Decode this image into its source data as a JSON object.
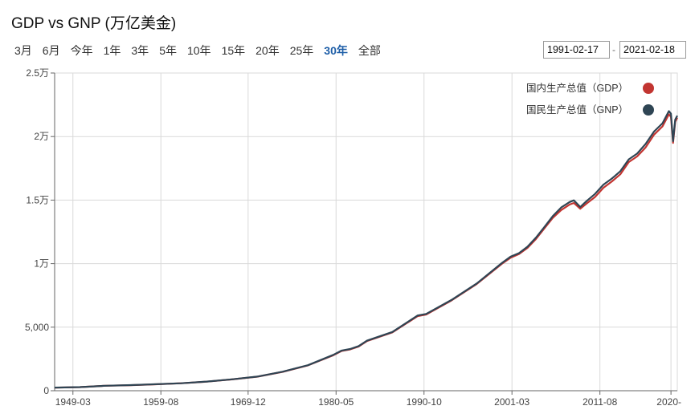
{
  "header": {
    "title": "GDP vs GNP (万亿美金)"
  },
  "ranges": [
    {
      "label": "3月",
      "active": false
    },
    {
      "label": "6月",
      "active": false
    },
    {
      "label": "今年",
      "active": false
    },
    {
      "label": "1年",
      "active": false
    },
    {
      "label": "3年",
      "active": false
    },
    {
      "label": "5年",
      "active": false
    },
    {
      "label": "10年",
      "active": false
    },
    {
      "label": "15年",
      "active": false
    },
    {
      "label": "20年",
      "active": false
    },
    {
      "label": "25年",
      "active": false
    },
    {
      "label": "30年",
      "active": true
    },
    {
      "label": "全部",
      "active": false
    }
  ],
  "date_range": {
    "start": "1991-02-17",
    "separator": "-",
    "end": "2021-02-18"
  },
  "colors": {
    "gdp": "#c23531",
    "gnp": "#2f4554",
    "grid": "#d9d9d9"
  },
  "chart_data": {
    "type": "line",
    "title": "GDP vs GNP (万亿美金)",
    "xlabel": "",
    "ylabel": "",
    "ylim": [
      0,
      25000
    ],
    "yticks": [
      0,
      5000,
      10000,
      15000,
      20000,
      25000
    ],
    "ytick_labels": [
      "0",
      "5,000",
      "1万",
      "1.5万",
      "2万",
      "2.5万"
    ],
    "xticks": [
      "1949-03",
      "1959-08",
      "1969-12",
      "1980-05",
      "1990-10",
      "2001-03",
      "2011-08",
      "2020-"
    ],
    "xlim": [
      "1947-01",
      "2020-10"
    ],
    "grid": true,
    "legend_position": "top-right",
    "series": [
      {
        "name": "国内生产总值（GDP）",
        "points": [
          [
            "1947-01",
            243
          ],
          [
            "1950-01",
            281
          ],
          [
            "1953-01",
            390
          ],
          [
            "1956-01",
            437
          ],
          [
            "1959-01",
            507
          ],
          [
            "1962-01",
            584
          ],
          [
            "1965-01",
            712
          ],
          [
            "1968-01",
            891
          ],
          [
            "1971-01",
            1107
          ],
          [
            "1974-01",
            1484
          ],
          [
            "1977-01",
            1992
          ],
          [
            "1980-01",
            2790
          ],
          [
            "1981-01",
            3130
          ],
          [
            "1982-01",
            3250
          ],
          [
            "1983-01",
            3480
          ],
          [
            "1984-01",
            3910
          ],
          [
            "1987-01",
            4590
          ],
          [
            "1990-01",
            5870
          ],
          [
            "1991-01",
            5990
          ],
          [
            "1994-01",
            7100
          ],
          [
            "1997-01",
            8400
          ],
          [
            "2000-01",
            10000
          ],
          [
            "2001-01",
            10470
          ],
          [
            "2002-01",
            10760
          ],
          [
            "2003-01",
            11240
          ],
          [
            "2004-01",
            11930
          ],
          [
            "2005-01",
            12770
          ],
          [
            "2006-01",
            13600
          ],
          [
            "2007-01",
            14220
          ],
          [
            "2008-01",
            14650
          ],
          [
            "2008-07",
            14770
          ],
          [
            "2009-04",
            14320
          ],
          [
            "2010-01",
            14720
          ],
          [
            "2011-01",
            15240
          ],
          [
            "2012-01",
            15970
          ],
          [
            "2013-01",
            16470
          ],
          [
            "2014-01",
            17030
          ],
          [
            "2015-01",
            17990
          ],
          [
            "2016-01",
            18440
          ],
          [
            "2017-01",
            19150
          ],
          [
            "2018-01",
            20150
          ],
          [
            "2019-01",
            20800
          ],
          [
            "2019-10",
            21750
          ],
          [
            "2020-01",
            21560
          ],
          [
            "2020-04",
            19500
          ],
          [
            "2020-07",
            21170
          ],
          [
            "2020-10",
            21490
          ]
        ]
      },
      {
        "name": "国民生产总值（GNP）",
        "points": [
          [
            "1947-01",
            245
          ],
          [
            "1950-01",
            283
          ],
          [
            "1953-01",
            392
          ],
          [
            "1956-01",
            440
          ],
          [
            "1959-01",
            510
          ],
          [
            "1962-01",
            588
          ],
          [
            "1965-01",
            718
          ],
          [
            "1968-01",
            897
          ],
          [
            "1971-01",
            1113
          ],
          [
            "1974-01",
            1496
          ],
          [
            "1977-01",
            2006
          ],
          [
            "1980-01",
            2820
          ],
          [
            "1981-01",
            3160
          ],
          [
            "1982-01",
            3280
          ],
          [
            "1983-01",
            3510
          ],
          [
            "1984-01",
            3940
          ],
          [
            "1987-01",
            4620
          ],
          [
            "1990-01",
            5920
          ],
          [
            "1991-01",
            6040
          ],
          [
            "1994-01",
            7140
          ],
          [
            "1997-01",
            8440
          ],
          [
            "2000-01",
            10060
          ],
          [
            "2001-01",
            10550
          ],
          [
            "2002-01",
            10830
          ],
          [
            "2003-01",
            11330
          ],
          [
            "2004-01",
            12040
          ],
          [
            "2005-01",
            12880
          ],
          [
            "2006-01",
            13740
          ],
          [
            "2007-01",
            14420
          ],
          [
            "2008-01",
            14850
          ],
          [
            "2008-07",
            14980
          ],
          [
            "2009-04",
            14460
          ],
          [
            "2010-01",
            14920
          ],
          [
            "2011-01",
            15480
          ],
          [
            "2012-01",
            16220
          ],
          [
            "2013-01",
            16700
          ],
          [
            "2014-01",
            17270
          ],
          [
            "2015-01",
            18210
          ],
          [
            "2016-01",
            18660
          ],
          [
            "2017-01",
            19420
          ],
          [
            "2018-01",
            20400
          ],
          [
            "2019-01",
            21050
          ],
          [
            "2019-10",
            22000
          ],
          [
            "2020-01",
            21800
          ],
          [
            "2020-04",
            19640
          ],
          [
            "2020-07",
            21330
          ],
          [
            "2020-10",
            21640
          ]
        ]
      }
    ]
  }
}
